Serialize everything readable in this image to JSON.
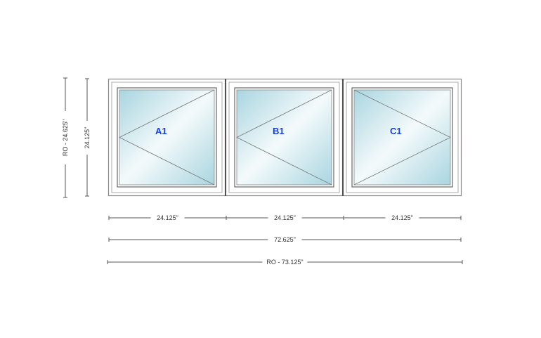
{
  "units": [
    {
      "label": "A1",
      "opening": "apex-left"
    },
    {
      "label": "B1",
      "opening": "apex-left"
    },
    {
      "label": "C1",
      "opening": "apex-right"
    }
  ],
  "dimensions": {
    "rough_opening_height": "RO - 24.625\"",
    "unit_height": "24.125\"",
    "unit_widths": [
      "24.125\"",
      "24.125\"",
      "24.125\""
    ],
    "overall_width": "72.625\"",
    "rough_opening_width": "RO - 73.125\""
  },
  "colors": {
    "label": "#1a3fd6",
    "glass_dark": "#a9d5e0",
    "frame_line": "#777777"
  }
}
